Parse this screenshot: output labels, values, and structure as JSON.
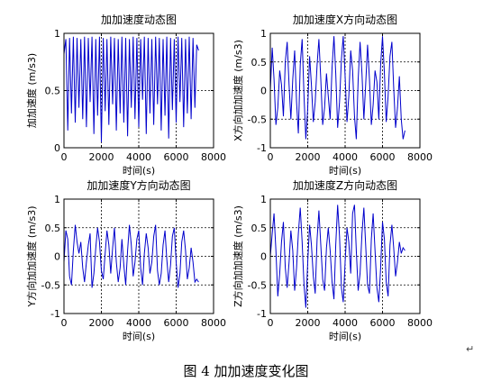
{
  "figure": {
    "caption": "图 4  加加速度变化图",
    "paragraph_mark": "↵"
  },
  "chart_data": [
    {
      "type": "line",
      "title": "加加速度动态图",
      "xlabel": "时间(s)",
      "ylabel": "加加速度 (m/s3)",
      "xlim": [
        0,
        8000
      ],
      "ylim": [
        0,
        1
      ],
      "xticks": [
        "0",
        "2000",
        "4000",
        "6000",
        "8000"
      ],
      "yticks": [
        "0",
        "0.5",
        "1"
      ],
      "grid": true,
      "line_color": "#0000cc",
      "series": [
        {
          "x": [
            0,
            100,
            200,
            300,
            400,
            500,
            600,
            700,
            800,
            900,
            1000,
            1100,
            1200,
            1300,
            1400,
            1500,
            1600,
            1700,
            1800,
            1900,
            2000,
            2100,
            2200,
            2300,
            2400,
            2500,
            2600,
            2700,
            2800,
            2900,
            3000,
            3100,
            3200,
            3300,
            3400,
            3500,
            3600,
            3700,
            3800,
            3900,
            4000,
            4100,
            4200,
            4300,
            4400,
            4500,
            4600,
            4700,
            4800,
            4900,
            5000,
            5100,
            5200,
            5300,
            5400,
            5500,
            5600,
            5700,
            5800,
            5900,
            6000,
            6100,
            6200,
            6300,
            6400,
            6500,
            6600,
            6700,
            6800,
            6900,
            7000,
            7100,
            7200
          ],
          "y": [
            0.82,
            0.95,
            0.15,
            0.96,
            0.3,
            0.97,
            0.22,
            0.96,
            0.35,
            0.95,
            0.25,
            0.97,
            0.18,
            0.96,
            0.4,
            0.97,
            0.12,
            0.95,
            0.28,
            0.97,
            0.05,
            0.96,
            0.32,
            0.95,
            0.2,
            0.97,
            0.38,
            0.96,
            0.15,
            0.95,
            0.3,
            0.97,
            0.22,
            0.96,
            0.1,
            0.95,
            0.35,
            0.97,
            0.25,
            0.96,
            0.18,
            0.95,
            0.42,
            0.97,
            0.12,
            0.96,
            0.3,
            0.95,
            0.2,
            0.97,
            0.38,
            0.96,
            0.15,
            0.95,
            0.28,
            0.97,
            0.08,
            0.96,
            0.33,
            0.95,
            0.22,
            0.97,
            0.4,
            0.96,
            0.18,
            0.95,
            0.3,
            0.97,
            0.25,
            0.96,
            0.35,
            0.9,
            0.85
          ]
        }
      ]
    },
    {
      "type": "line",
      "title": "加加速度X方向动态图",
      "xlabel": "时间(s)",
      "ylabel": "X方向加加速度 (m/s3)",
      "xlim": [
        0,
        8000
      ],
      "ylim": [
        -1,
        1
      ],
      "xticks": [
        "0",
        "2000",
        "4000",
        "6000",
        "8000"
      ],
      "yticks": [
        "-1",
        "-0.5",
        "0",
        "0.5",
        "1"
      ],
      "grid": true,
      "line_color": "#0000cc",
      "series": [
        {
          "x": [
            0,
            100,
            200,
            300,
            400,
            500,
            600,
            700,
            800,
            900,
            1000,
            1100,
            1200,
            1300,
            1400,
            1500,
            1600,
            1700,
            1800,
            1900,
            2000,
            2100,
            2200,
            2300,
            2400,
            2500,
            2600,
            2700,
            2800,
            2900,
            3000,
            3100,
            3200,
            3300,
            3400,
            3500,
            3600,
            3700,
            3800,
            3900,
            4000,
            4100,
            4200,
            4300,
            4400,
            4500,
            4600,
            4700,
            4800,
            4900,
            5000,
            5100,
            5200,
            5300,
            5400,
            5500,
            5600,
            5700,
            5800,
            5900,
            6000,
            6100,
            6200,
            6300,
            6400,
            6500,
            6600,
            6700,
            6800,
            6900,
            7000,
            7100,
            7200
          ],
          "y": [
            0.0,
            0.75,
            0.2,
            -0.6,
            -0.3,
            0.35,
            0.1,
            -0.45,
            0.5,
            0.85,
            0.1,
            -0.5,
            0.2,
            0.7,
            -0.2,
            -0.75,
            0.45,
            0.9,
            -0.1,
            -0.85,
            -0.3,
            0.6,
            0.1,
            -0.55,
            -0.2,
            0.45,
            0.9,
            0.2,
            -0.6,
            -0.3,
            0.3,
            -0.1,
            -0.5,
            0.4,
            0.95,
            0.3,
            -0.65,
            -0.2,
            0.55,
            0.95,
            0.25,
            -0.55,
            -0.1,
            0.7,
            0.35,
            -0.45,
            -0.85,
            0.2,
            0.85,
            0.3,
            -0.5,
            0.1,
            0.8,
            0.2,
            -0.6,
            -0.25,
            0.35,
            0.15,
            -0.5,
            0.45,
            0.95,
            0.3,
            -0.55,
            -0.1,
            0.6,
            0.85,
            0.05,
            -0.65,
            -0.3,
            0.25,
            -0.5,
            -0.85,
            -0.7
          ]
        }
      ]
    },
    {
      "type": "line",
      "title": "加加速度Y方向动态图",
      "xlabel": "时间(s)",
      "ylabel": "Y方向加加速度 (m/s3)",
      "xlim": [
        0,
        8000
      ],
      "ylim": [
        -1,
        1
      ],
      "xticks": [
        "0",
        "2000",
        "4000",
        "6000",
        "8000"
      ],
      "yticks": [
        "-1",
        "-0.5",
        "0",
        "0.5",
        "1"
      ],
      "grid": true,
      "line_color": "#0000cc",
      "series": [
        {
          "x": [
            0,
            100,
            200,
            300,
            400,
            500,
            600,
            700,
            800,
            900,
            1000,
            1100,
            1200,
            1300,
            1400,
            1500,
            1600,
            1700,
            1800,
            1900,
            2000,
            2100,
            2200,
            2300,
            2400,
            2500,
            2600,
            2700,
            2800,
            2900,
            3000,
            3100,
            3200,
            3300,
            3400,
            3500,
            3600,
            3700,
            3800,
            3900,
            4000,
            4100,
            4200,
            4300,
            4400,
            4500,
            4600,
            4700,
            4800,
            4900,
            5000,
            5100,
            5200,
            5300,
            5400,
            5500,
            5600,
            5700,
            5800,
            5900,
            6000,
            6100,
            6200,
            6300,
            6400,
            6500,
            6600,
            6700,
            6800,
            6900,
            7000,
            7100,
            7200
          ],
          "y": [
            -0.1,
            0.45,
            0.3,
            -0.35,
            -0.5,
            0.1,
            0.55,
            0.25,
            0.05,
            0.25,
            -0.2,
            -0.45,
            -0.1,
            0.2,
            0.4,
            -0.55,
            -0.3,
            0.15,
            0.5,
            0.25,
            -0.25,
            -0.4,
            0.05,
            0.45,
            0.2,
            -0.3,
            0.15,
            0.5,
            -0.1,
            -0.45,
            -0.2,
            0.3,
            -0.15,
            -0.5,
            0.1,
            0.55,
            0.2,
            -0.35,
            -0.1,
            0.3,
            0.45,
            -0.2,
            -0.5,
            0.05,
            0.4,
            0.15,
            -0.3,
            -0.1,
            0.35,
            0.55,
            -0.25,
            -0.5,
            -0.3,
            0.2,
            0.45,
            -0.05,
            -0.45,
            -0.15,
            0.35,
            0.5,
            -0.1,
            -0.55,
            -0.3,
            0.25,
            0.45,
            0.1,
            -0.4,
            -0.2,
            0.15,
            -0.1,
            -0.45,
            -0.4,
            -0.45
          ]
        }
      ]
    },
    {
      "type": "line",
      "title": "加加速度Z方向动态图",
      "xlabel": "时间(s)",
      "ylabel": "Z方向加加速度 (m/s3)",
      "xlim": [
        0,
        8000
      ],
      "ylim": [
        -1,
        1
      ],
      "xticks": [
        "0",
        "2000",
        "4000",
        "6000",
        "8000"
      ],
      "yticks": [
        "-1",
        "-0.5",
        "0",
        "0.5",
        "1"
      ],
      "grid": true,
      "line_color": "#0000cc",
      "series": [
        {
          "x": [
            0,
            100,
            200,
            300,
            400,
            500,
            600,
            700,
            800,
            900,
            1000,
            1100,
            1200,
            1300,
            1400,
            1500,
            1600,
            1700,
            1800,
            1900,
            2000,
            2100,
            2200,
            2300,
            2400,
            2500,
            2600,
            2700,
            2800,
            2900,
            3000,
            3100,
            3200,
            3300,
            3400,
            3500,
            3600,
            3700,
            3800,
            3900,
            4000,
            4100,
            4200,
            4300,
            4400,
            4500,
            4600,
            4700,
            4800,
            4900,
            5000,
            5100,
            5200,
            5300,
            5400,
            5500,
            5600,
            5700,
            5800,
            5900,
            6000,
            6100,
            6200,
            6300,
            6400,
            6500,
            6600,
            6700,
            6800,
            6900,
            7000,
            7100,
            7200
          ],
          "y": [
            0.0,
            0.4,
            0.75,
            0.1,
            -0.7,
            -0.3,
            0.25,
            0.6,
            -0.2,
            -0.55,
            -0.1,
            0.45,
            0.1,
            -0.6,
            -0.2,
            0.4,
            0.85,
            0.25,
            -0.5,
            -0.9,
            -0.1,
            0.55,
            0.2,
            -0.35,
            -0.65,
            0.3,
            0.8,
            0.2,
            -0.4,
            -0.6,
            0.15,
            0.5,
            0.1,
            -0.45,
            -0.75,
            0.2,
            0.9,
            0.35,
            -0.55,
            -0.8,
            -0.1,
            0.5,
            0.25,
            -0.3,
            0.75,
            0.9,
            0.1,
            -0.6,
            -0.3,
            0.4,
            0.85,
            0.2,
            -0.5,
            -0.65,
            0.3,
            0.75,
            0.1,
            -0.55,
            -0.8,
            -0.2,
            0.6,
            0.3,
            -0.45,
            -0.7,
            0.2,
            0.55,
            0.15,
            -0.35,
            -0.1,
            0.25,
            0.05,
            0.15,
            0.1
          ]
        }
      ]
    }
  ]
}
